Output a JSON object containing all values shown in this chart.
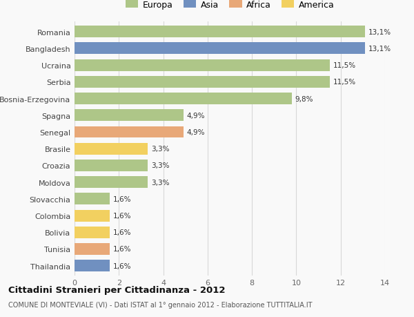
{
  "countries": [
    "Romania",
    "Bangladesh",
    "Ucraina",
    "Serbia",
    "Bosnia-Erzegovina",
    "Spagna",
    "Senegal",
    "Brasile",
    "Croazia",
    "Moldova",
    "Slovacchia",
    "Colombia",
    "Bolivia",
    "Tunisia",
    "Thailandia"
  ],
  "values": [
    13.1,
    13.1,
    11.5,
    11.5,
    9.8,
    4.9,
    4.9,
    3.3,
    3.3,
    3.3,
    1.6,
    1.6,
    1.6,
    1.6,
    1.6
  ],
  "labels": [
    "13,1%",
    "13,1%",
    "11,5%",
    "11,5%",
    "9,8%",
    "4,9%",
    "4,9%",
    "3,3%",
    "3,3%",
    "3,3%",
    "1,6%",
    "1,6%",
    "1,6%",
    "1,6%",
    "1,6%"
  ],
  "continents": [
    "Europa",
    "Asia",
    "Europa",
    "Europa",
    "Europa",
    "Europa",
    "Africa",
    "America",
    "Europa",
    "Europa",
    "Europa",
    "America",
    "America",
    "Africa",
    "Asia"
  ],
  "continent_colors": {
    "Europa": "#aec688",
    "Asia": "#7090c0",
    "Africa": "#e8a878",
    "America": "#f2d060"
  },
  "legend_order": [
    "Europa",
    "Asia",
    "Africa",
    "America"
  ],
  "xlim": [
    0,
    14
  ],
  "xticks": [
    0,
    2,
    4,
    6,
    8,
    10,
    12,
    14
  ],
  "title": "Cittadini Stranieri per Cittadinanza - 2012",
  "subtitle": "COMUNE DI MONTEVIALE (VI) - Dati ISTAT al 1° gennaio 2012 - Elaborazione TUTTITALIA.IT",
  "bg_color": "#f9f9f9",
  "grid_color": "#d8d8d8",
  "bar_height": 0.7
}
